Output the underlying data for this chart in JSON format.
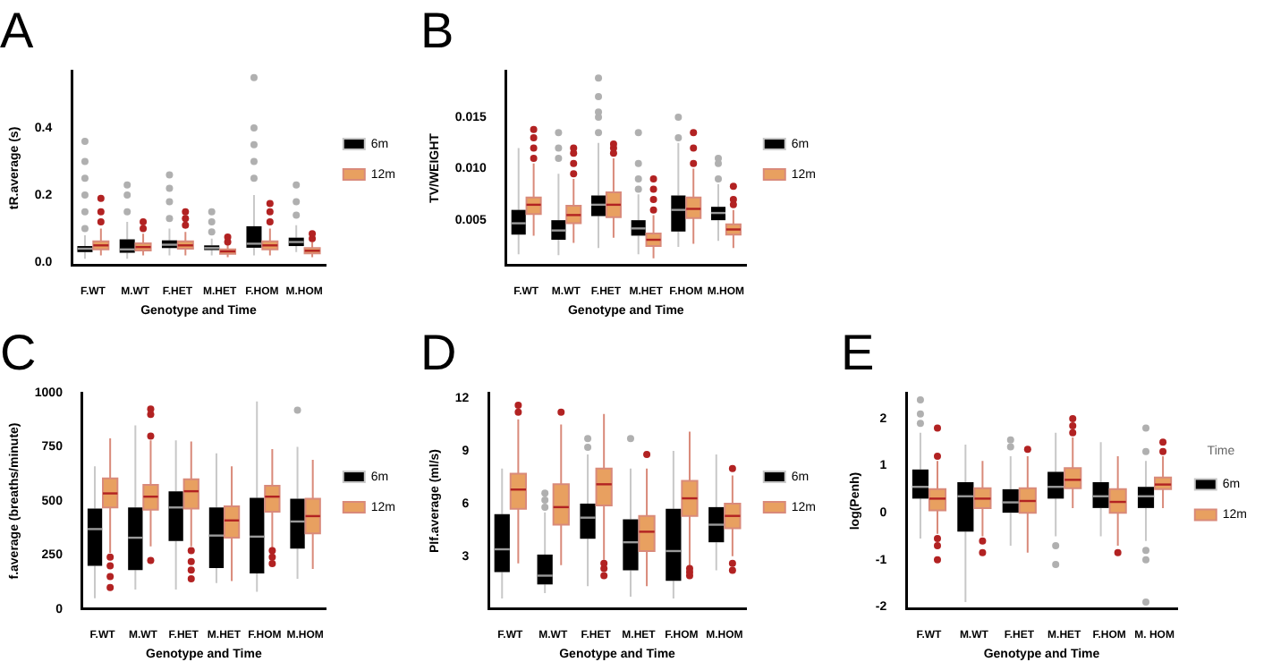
{
  "chart_data": [
    {
      "type": "box",
      "title": "A",
      "xlabel": "Genotype and Time",
      "ylabel": "tR.average (s)",
      "categories": [
        "F.WT",
        "M.WT",
        "F.HET",
        "M.HET",
        "F.HOM",
        "M.HOM"
      ],
      "ylim": [
        -0.01,
        0.57
      ],
      "yticks": [
        {
          "value": 0,
          "label": "0.0"
        },
        {
          "value": 0.2,
          "label": "0.2"
        },
        {
          "value": 0.4,
          "label": "0.4"
        }
      ],
      "legend": "right",
      "series": [
        {
          "name": "6m",
          "color": "#000000",
          "boxes": [
            {
              "low": 0.01,
              "q1": 0.03,
              "median": 0.04,
              "q3": 0.048,
              "high": 0.08,
              "outliers": [
                0.1,
                0.15,
                0.2,
                0.25,
                0.3,
                0.36
              ]
            },
            {
              "low": 0.01,
              "q1": 0.028,
              "median": 0.038,
              "q3": 0.068,
              "high": 0.12,
              "outliers": [
                0.15,
                0.2,
                0.23
              ]
            },
            {
              "low": 0.02,
              "q1": 0.042,
              "median": 0.052,
              "q3": 0.065,
              "high": 0.1,
              "outliers": [
                0.13,
                0.18,
                0.22,
                0.26
              ]
            },
            {
              "low": 0.02,
              "q1": 0.036,
              "median": 0.042,
              "q3": 0.05,
              "high": 0.07,
              "outliers": [
                0.09,
                0.12,
                0.15
              ]
            },
            {
              "low": 0.02,
              "q1": 0.043,
              "median": 0.055,
              "q3": 0.107,
              "high": 0.2,
              "outliers": [
                0.25,
                0.3,
                0.35,
                0.4,
                0.55
              ]
            },
            {
              "low": 0.03,
              "q1": 0.048,
              "median": 0.06,
              "q3": 0.073,
              "high": 0.11,
              "outliers": [
                0.14,
                0.18,
                0.23
              ]
            }
          ]
        },
        {
          "name": "12m",
          "color": "#e8a060",
          "boxes": [
            {
              "low": 0.02,
              "q1": 0.038,
              "median": 0.05,
              "q3": 0.062,
              "high": 0.1,
              "outliers": [
                0.12,
                0.15,
                0.19
              ]
            },
            {
              "low": 0.02,
              "q1": 0.035,
              "median": 0.045,
              "q3": 0.056,
              "high": 0.085,
              "outliers": [
                0.1,
                0.12
              ]
            },
            {
              "low": 0.02,
              "q1": 0.04,
              "median": 0.05,
              "q3": 0.062,
              "high": 0.09,
              "outliers": [
                0.11,
                0.13,
                0.15
              ]
            },
            {
              "low": 0.015,
              "q1": 0.025,
              "median": 0.032,
              "q3": 0.038,
              "high": 0.055,
              "outliers": [
                0.06,
                0.075
              ]
            },
            {
              "low": 0.02,
              "q1": 0.038,
              "median": 0.05,
              "q3": 0.062,
              "high": 0.1,
              "outliers": [
                0.12,
                0.15,
                0.175
              ]
            },
            {
              "low": 0.015,
              "q1": 0.026,
              "median": 0.034,
              "q3": 0.042,
              "high": 0.06,
              "outliers": [
                0.07,
                0.085
              ]
            }
          ]
        }
      ]
    },
    {
      "type": "box",
      "title": "B",
      "xlabel": "Genotype and Time",
      "ylabel": "TV/WEIGHT",
      "categories": [
        "F.WT",
        "M.WT",
        "F.HET",
        "M.HET",
        "F.HOM",
        "M.HOM"
      ],
      "ylim": [
        0.0006,
        0.0195
      ],
      "yticks": [
        {
          "value": 0.005,
          "label": "0.005"
        },
        {
          "value": 0.01,
          "label": "0.010"
        },
        {
          "value": 0.015,
          "label": "0.015"
        }
      ],
      "legend": "right",
      "series": [
        {
          "name": "6m",
          "color": "#000000",
          "boxes": [
            {
              "low": 0.0017,
              "q1": 0.0036,
              "median": 0.0047,
              "q3": 0.006,
              "high": 0.012
            },
            {
              "low": 0.0016,
              "q1": 0.0031,
              "median": 0.004,
              "q3": 0.005,
              "high": 0.0095,
              "outliers": [
                0.011,
                0.012,
                0.0135
              ]
            },
            {
              "low": 0.0023,
              "q1": 0.0054,
              "median": 0.0065,
              "q3": 0.0074,
              "high": 0.0125,
              "outliers": [
                0.0135,
                0.015,
                0.0155,
                0.017,
                0.0188
              ]
            },
            {
              "low": 0.0017,
              "q1": 0.0035,
              "median": 0.0042,
              "q3": 0.005,
              "high": 0.0075,
              "outliers": [
                0.008,
                0.009,
                0.0105,
                0.0135
              ]
            },
            {
              "low": 0.0024,
              "q1": 0.0039,
              "median": 0.006,
              "q3": 0.0074,
              "high": 0.0125,
              "outliers": [
                0.013,
                0.015
              ]
            },
            {
              "low": 0.003,
              "q1": 0.005,
              "median": 0.0057,
              "q3": 0.0063,
              "high": 0.0085,
              "outliers": [
                0.009,
                0.0105,
                0.011
              ]
            }
          ]
        },
        {
          "name": "12m",
          "color": "#e8a060",
          "boxes": [
            {
              "low": 0.0035,
              "q1": 0.0056,
              "median": 0.0065,
              "q3": 0.0072,
              "high": 0.0105,
              "outliers": [
                0.011,
                0.012,
                0.013,
                0.0138
              ]
            },
            {
              "low": 0.0028,
              "q1": 0.0047,
              "median": 0.0055,
              "q3": 0.0064,
              "high": 0.009,
              "outliers": [
                0.0095,
                0.0105,
                0.0115,
                0.012
              ]
            },
            {
              "low": 0.0033,
              "q1": 0.0053,
              "median": 0.0065,
              "q3": 0.0077,
              "high": 0.011,
              "outliers": [
                0.0115,
                0.012,
                0.0124
              ]
            },
            {
              "low": 0.0013,
              "q1": 0.0025,
              "median": 0.0031,
              "q3": 0.0037,
              "high": 0.0055,
              "outliers": [
                0.006,
                0.007,
                0.008,
                0.009
              ]
            },
            {
              "low": 0.0027,
              "q1": 0.0052,
              "median": 0.0061,
              "q3": 0.0072,
              "high": 0.01,
              "outliers": [
                0.0105,
                0.012,
                0.0135
              ]
            },
            {
              "low": 0.0023,
              "q1": 0.0036,
              "median": 0.0041,
              "q3": 0.0046,
              "high": 0.006,
              "outliers": [
                0.0065,
                0.007,
                0.0083
              ]
            }
          ]
        }
      ]
    },
    {
      "type": "box",
      "title": "C",
      "xlabel": "Genotype and Time",
      "ylabel": "f.average (breaths/minute)",
      "categories": [
        "F.WT",
        "M.WT",
        "F.HET",
        "M.HET",
        "F.HOM",
        "M.HOM"
      ],
      "ylim": [
        0,
        1000
      ],
      "yticks": [
        0,
        250,
        500,
        750,
        1000
      ],
      "legend": "right",
      "series": [
        {
          "name": "6m",
          "color": "#000000",
          "boxes": [
            {
              "low": 50,
              "q1": 200,
              "median": 370,
              "q3": 465,
              "high": 660
            },
            {
              "low": 90,
              "q1": 180,
              "median": 330,
              "q3": 470,
              "high": 850
            },
            {
              "low": 90,
              "q1": 315,
              "median": 470,
              "q3": 545,
              "high": 780
            },
            {
              "low": 120,
              "q1": 190,
              "median": 340,
              "q3": 470,
              "high": 720
            },
            {
              "low": 80,
              "q1": 165,
              "median": 335,
              "q3": 515,
              "high": 960
            },
            {
              "low": 140,
              "q1": 280,
              "median": 405,
              "q3": 510,
              "high": 750,
              "outliers": [
                920
              ]
            }
          ]
        },
        {
          "name": "12m",
          "color": "#e8a060",
          "boxes": [
            {
              "low": 260,
              "q1": 470,
              "median": 535,
              "q3": 605,
              "high": 790,
              "outliers": [
                100,
                150,
                200,
                240
              ]
            },
            {
              "low": 290,
              "q1": 460,
              "median": 520,
              "q3": 575,
              "high": 780,
              "outliers": [
                225,
                800,
                900,
                925
              ]
            },
            {
              "low": 290,
              "q1": 465,
              "median": 545,
              "q3": 600,
              "high": 775,
              "outliers": [
                140,
                180,
                220,
                270
              ]
            },
            {
              "low": 130,
              "q1": 330,
              "median": 410,
              "q3": 475,
              "high": 660
            },
            {
              "low": 280,
              "q1": 450,
              "median": 520,
              "q3": 570,
              "high": 740,
              "outliers": [
                210,
                240,
                270
              ]
            },
            {
              "low": 185,
              "q1": 350,
              "median": 430,
              "q3": 510,
              "high": 690
            }
          ]
        }
      ]
    },
    {
      "type": "box",
      "title": "D",
      "xlabel": "Genotype and Time",
      "ylabel": "PIf.average (ml/s)",
      "categories": [
        "F.WT",
        "M.WT",
        "F.HET",
        "M.HET",
        "F.HOM",
        "M.HOM"
      ],
      "ylim": [
        0,
        12.3
      ],
      "yticks": [
        3,
        6,
        9,
        12
      ],
      "legend": "right",
      "series": [
        {
          "name": "6m",
          "color": "#000000",
          "boxes": [
            {
              "low": 0.6,
              "q1": 2.1,
              "median": 3.4,
              "q3": 5.4,
              "high": 8
            },
            {
              "low": 0.9,
              "q1": 1.4,
              "median": 1.9,
              "q3": 3.1,
              "high": 5.5,
              "outliers": [
                5.8,
                6.2,
                6.6
              ]
            },
            {
              "low": 1.3,
              "q1": 4,
              "median": 5.2,
              "q3": 6,
              "high": 8.8,
              "outliers": [
                9.2,
                9.7
              ]
            },
            {
              "low": 0.7,
              "q1": 2.2,
              "median": 3.8,
              "q3": 5.1,
              "high": 8,
              "outliers": [
                9.7
              ]
            },
            {
              "low": 0.6,
              "q1": 1.6,
              "median": 3.3,
              "q3": 5.7,
              "high": 9
            },
            {
              "low": 2.2,
              "q1": 3.8,
              "median": 4.8,
              "q3": 5.8,
              "high": 8.8
            }
          ]
        },
        {
          "name": "12m",
          "color": "#e8a060",
          "boxes": [
            {
              "low": 2.6,
              "q1": 5.7,
              "median": 6.8,
              "q3": 7.7,
              "high": 10.8,
              "outliers": [
                11.2,
                11.6
              ]
            },
            {
              "low": 2.5,
              "q1": 4.8,
              "median": 5.8,
              "q3": 7.1,
              "high": 10.5,
              "outliers": [
                11.2
              ]
            },
            {
              "low": 2.8,
              "q1": 5.9,
              "median": 7.1,
              "q3": 8,
              "high": 11.1,
              "outliers": [
                1.9,
                2.3,
                2.6
              ]
            },
            {
              "low": 1.3,
              "q1": 3.3,
              "median": 4.4,
              "q3": 5.3,
              "high": 8,
              "outliers": [
                8.8
              ]
            },
            {
              "low": 2.4,
              "q1": 5.3,
              "median": 6.3,
              "q3": 7.3,
              "high": 10.1,
              "outliers": [
                1.9,
                2.1,
                2.3
              ]
            },
            {
              "low": 3,
              "q1": 4.6,
              "median": 5.3,
              "q3": 6,
              "high": 7.6,
              "outliers": [
                2.2,
                2.6,
                8
              ]
            }
          ]
        }
      ]
    },
    {
      "type": "box",
      "title": "E",
      "xlabel": "Genotype and Time",
      "ylabel": "log(Penh)",
      "legend_title": "Time",
      "categories": [
        "F.WT",
        "M.WT",
        "F.HET",
        "M.HET",
        "F.HOM",
        "M. HOM"
      ],
      "ylim": [
        -2.05,
        2.55
      ],
      "yticks": [
        -2,
        -1,
        0,
        1,
        2
      ],
      "legend": "right",
      "series": [
        {
          "name": "6m",
          "color": "#000000",
          "boxes": [
            {
              "low": -0.55,
              "q1": 0.3,
              "median": 0.55,
              "q3": 0.92,
              "high": 1.7,
              "outliers": [
                1.9,
                2.1,
                2.4
              ]
            },
            {
              "low": -1.9,
              "q1": -0.4,
              "median": 0.35,
              "q3": 0.65,
              "high": 1.45
            },
            {
              "low": -0.7,
              "q1": 0,
              "median": 0.22,
              "q3": 0.5,
              "high": 1.2,
              "outliers": [
                1.4,
                1.55
              ]
            },
            {
              "low": -0.5,
              "q1": 0.3,
              "median": 0.55,
              "q3": 0.87,
              "high": 1.7,
              "outliers": [
                -0.7,
                -1.1
              ]
            },
            {
              "low": -0.5,
              "q1": 0.1,
              "median": 0.35,
              "q3": 0.65,
              "high": 1.5
            },
            {
              "low": -0.6,
              "q1": 0.1,
              "median": 0.35,
              "q3": 0.55,
              "high": 1.1,
              "outliers": [
                1.3,
                1.8,
                -0.8,
                -1,
                -1.9
              ]
            }
          ]
        },
        {
          "name": "12m",
          "color": "#e8a060",
          "boxes": [
            {
              "low": -0.45,
              "q1": 0.05,
              "median": 0.3,
              "q3": 0.5,
              "high": 1.1,
              "outliers": [
                -1,
                -0.7,
                -0.55,
                1.2,
                1.8
              ]
            },
            {
              "low": -0.5,
              "q1": 0.1,
              "median": 0.3,
              "q3": 0.52,
              "high": 1.1,
              "outliers": [
                -0.6,
                -0.85
              ]
            },
            {
              "low": -0.85,
              "q1": 0,
              "median": 0.25,
              "q3": 0.52,
              "high": 1.2,
              "outliers": [
                1.35
              ]
            },
            {
              "low": 0.1,
              "q1": 0.52,
              "median": 0.7,
              "q3": 0.95,
              "high": 1.6,
              "outliers": [
                1.7,
                1.85,
                2
              ]
            },
            {
              "low": -0.7,
              "q1": 0,
              "median": 0.23,
              "q3": 0.5,
              "high": 1.2,
              "outliers": [
                -0.85
              ]
            },
            {
              "low": 0.1,
              "q1": 0.5,
              "median": 0.6,
              "q3": 0.75,
              "high": 1.2,
              "outliers": [
                1.3,
                1.5
              ]
            }
          ]
        }
      ]
    }
  ]
}
